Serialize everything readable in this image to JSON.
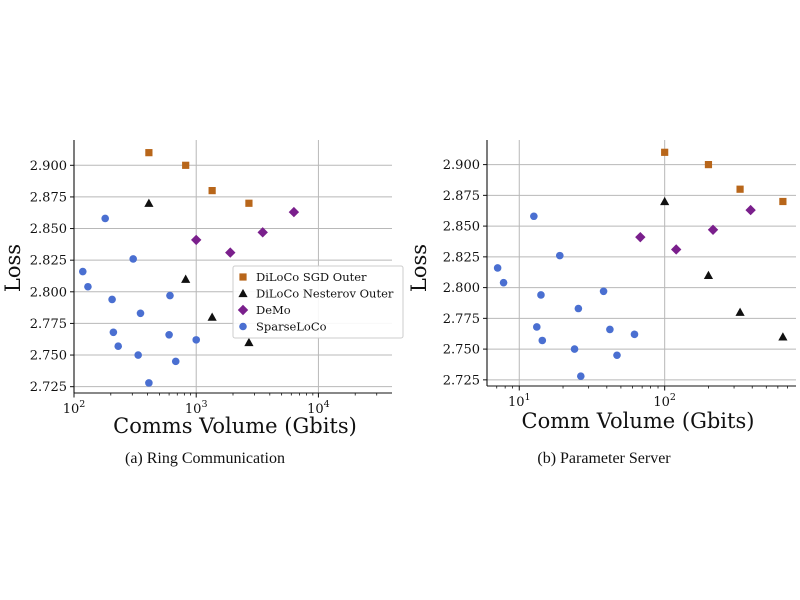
{
  "colors": {
    "sgd": "#b8661a",
    "nesterov": "#111111",
    "demo": "#7a1f8c",
    "sparse": "#4a6fd1",
    "grid": "#b8b8b8"
  },
  "chart_data": [
    {
      "type": "scatter",
      "caption": "(a) Ring Communication",
      "xlabel": "Comms Volume (Gbits)",
      "ylabel": "Loss",
      "xscale": "log",
      "xlim": [
        100,
        40000
      ],
      "ylim": [
        2.72,
        2.92
      ],
      "x_ticks": [
        100,
        1000,
        10000
      ],
      "x_tick_labels": [
        {
          "base": "10",
          "exp": "2"
        },
        {
          "base": "10",
          "exp": "3"
        },
        {
          "base": "10",
          "exp": "4"
        }
      ],
      "y_ticks": [
        2.725,
        2.75,
        2.775,
        2.8,
        2.825,
        2.85,
        2.875,
        2.9
      ],
      "y_tick_labels": [
        "2.725",
        "2.750",
        "2.775",
        "2.800",
        "2.825",
        "2.850",
        "2.875",
        "2.900"
      ],
      "grid": true,
      "legend_position": "right",
      "series": [
        {
          "name": "DiLoCo SGD Outer",
          "marker": "square",
          "color_key": "sgd",
          "points": [
            [
              410,
              2.91
            ],
            [
              820,
              2.9
            ],
            [
              1350,
              2.88
            ],
            [
              2700,
              2.87
            ]
          ]
        },
        {
          "name": "DiLoCo Nesterov Outer",
          "marker": "triangle",
          "color_key": "nesterov",
          "points": [
            [
              410,
              2.87
            ],
            [
              820,
              2.81
            ],
            [
              1350,
              2.78
            ],
            [
              2700,
              2.76
            ]
          ]
        },
        {
          "name": "DeMo",
          "marker": "diamond",
          "color_key": "demo",
          "points": [
            [
              1000,
              2.841
            ],
            [
              1900,
              2.831
            ],
            [
              3500,
              2.847
            ],
            [
              6300,
              2.863
            ]
          ]
        },
        {
          "name": "SparseLoCo",
          "marker": "circle",
          "color_key": "sparse",
          "points": [
            [
              118,
              2.816
            ],
            [
              130,
              2.804
            ],
            [
              180,
              2.858
            ],
            [
              205,
              2.794
            ],
            [
              210,
              2.768
            ],
            [
              230,
              2.757
            ],
            [
              305,
              2.826
            ],
            [
              335,
              2.75
            ],
            [
              350,
              2.783
            ],
            [
              410,
              2.728
            ],
            [
              600,
              2.766
            ],
            [
              610,
              2.797
            ],
            [
              680,
              2.745
            ],
            [
              1000,
              2.762
            ]
          ]
        }
      ]
    },
    {
      "type": "scatter",
      "caption": "(b) Parameter Server",
      "xlabel": "Comm Volume (Gbits)",
      "ylabel": "Loss",
      "xscale": "log",
      "xlim": [
        6,
        800
      ],
      "ylim": [
        2.72,
        2.92
      ],
      "x_ticks": [
        10,
        100
      ],
      "x_tick_labels": [
        {
          "base": "10",
          "exp": "1"
        },
        {
          "base": "10",
          "exp": "2"
        }
      ],
      "y_ticks": [
        2.725,
        2.75,
        2.775,
        2.8,
        2.825,
        2.85,
        2.875,
        2.9
      ],
      "y_tick_labels": [
        "2.725",
        "2.750",
        "2.775",
        "2.800",
        "2.825",
        "2.850",
        "2.875",
        "2.900"
      ],
      "grid": true,
      "legend_position": "none",
      "series": [
        {
          "name": "DiLoCo SGD Outer",
          "marker": "square",
          "color_key": "sgd",
          "points": [
            [
              100,
              2.91
            ],
            [
              200,
              2.9
            ],
            [
              330,
              2.88
            ],
            [
              650,
              2.87
            ]
          ]
        },
        {
          "name": "DiLoCo Nesterov Outer",
          "marker": "triangle",
          "color_key": "nesterov",
          "points": [
            [
              100,
              2.87
            ],
            [
              200,
              2.81
            ],
            [
              330,
              2.78
            ],
            [
              650,
              2.76
            ]
          ]
        },
        {
          "name": "DeMo",
          "marker": "diamond",
          "color_key": "demo",
          "points": [
            [
              68,
              2.841
            ],
            [
              120,
              2.831
            ],
            [
              215,
              2.847
            ],
            [
              390,
              2.863
            ]
          ]
        },
        {
          "name": "SparseLoCo",
          "marker": "circle",
          "color_key": "sparse",
          "points": [
            [
              7.1,
              2.816
            ],
            [
              7.8,
              2.804
            ],
            [
              12.6,
              2.858
            ],
            [
              13.2,
              2.768
            ],
            [
              14.1,
              2.794
            ],
            [
              14.4,
              2.757
            ],
            [
              19,
              2.826
            ],
            [
              24,
              2.75
            ],
            [
              25.5,
              2.783
            ],
            [
              26.5,
              2.728
            ],
            [
              38,
              2.797
            ],
            [
              42,
              2.766
            ],
            [
              47,
              2.745
            ],
            [
              62,
              2.762
            ]
          ]
        }
      ]
    }
  ]
}
